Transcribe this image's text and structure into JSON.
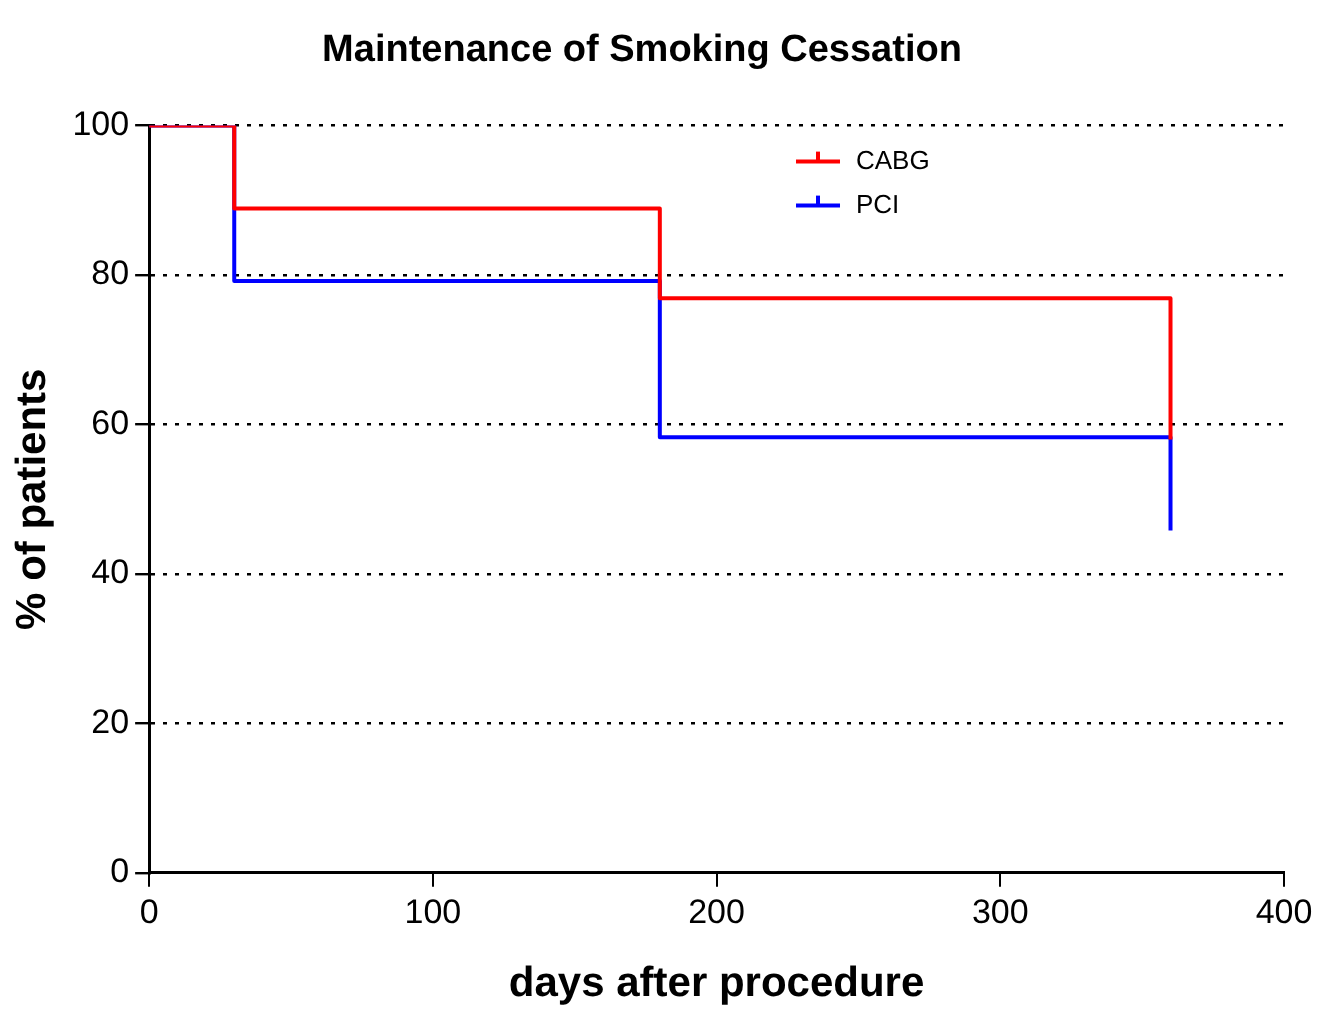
{
  "chart_data": {
    "type": "step",
    "title": "Maintenance of Smoking Cessation",
    "xlabel": "days after procedure",
    "ylabel": "% of patients",
    "xlim": [
      0,
      400
    ],
    "xticks": [
      0,
      100,
      200,
      300,
      400
    ],
    "ylim": [
      0,
      100
    ],
    "yticks": [
      0,
      20,
      40,
      60,
      80,
      100
    ],
    "grid": "y",
    "legend": "top right",
    "marker": "none",
    "line_style": "solid",
    "series": [
      {
        "name": "CABG",
        "color": "#ff0000",
        "x": [
          0,
          30,
          180,
          360
        ],
        "values": [
          100,
          88.9,
          76.9,
          58
        ]
      },
      {
        "name": "PCI",
        "color": "#0000ff",
        "x": [
          0,
          30,
          180,
          360
        ],
        "values": [
          100,
          79.2,
          58.3,
          45.8
        ]
      }
    ]
  }
}
